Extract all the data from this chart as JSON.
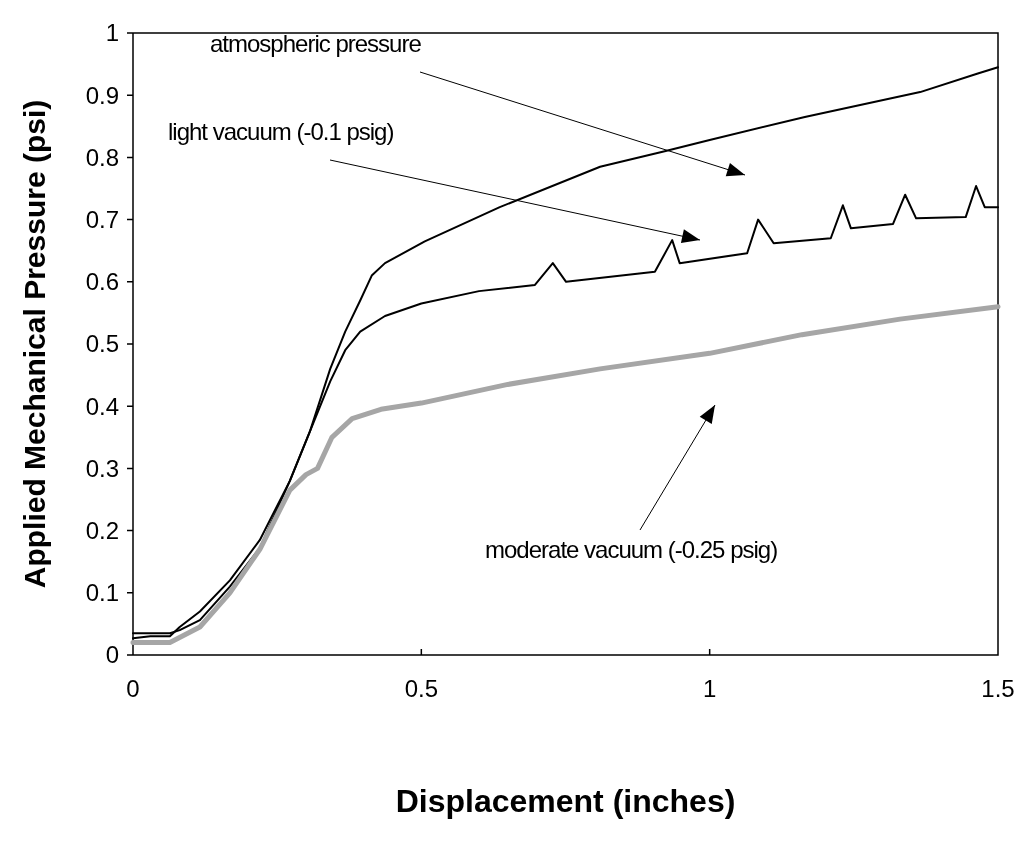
{
  "chart_data": {
    "type": "line",
    "xlabel": "Displacement (inches)",
    "ylabel": "Applied Mechanical Pressure (psi)",
    "xlim": [
      0,
      1.5
    ],
    "xticks": [
      0,
      0.5,
      1,
      1.5
    ],
    "ylim": [
      0,
      1
    ],
    "yticks": [
      0,
      0.1,
      0.2,
      0.3,
      0.4,
      0.5,
      0.6,
      0.7,
      0.8,
      0.9,
      1
    ],
    "grid": false,
    "marker": "none",
    "series": [
      {
        "color": "#000000",
        "x": [
          0,
          0.03,
          0.064,
          0.081,
          0.116,
          0.168,
          0.22,
          0.272,
          0.307,
          0.342,
          0.368,
          0.394,
          0.414,
          0.437,
          0.506,
          0.636,
          0.81,
          0.922,
          1.0,
          1.165,
          1.365,
          1.465,
          1.5
        ],
        "values": [
          0.027,
          0.03,
          0.03,
          0.045,
          0.07,
          0.12,
          0.185,
          0.28,
          0.36,
          0.46,
          0.52,
          0.57,
          0.61,
          0.63,
          0.665,
          0.72,
          0.785,
          0.81,
          0.828,
          0.865,
          0.905,
          0.935,
          0.945
        ]
      },
      {
        "color": "#000000",
        "x": [
          0,
          0.064,
          0.081,
          0.116,
          0.168,
          0.22,
          0.272,
          0.307,
          0.342,
          0.368,
          0.394,
          0.437,
          0.5,
          0.6,
          0.697,
          0.728,
          0.751,
          0.905,
          0.935,
          0.948,
          1.065,
          1.084,
          1.111,
          1.21,
          1.231,
          1.245,
          1.318,
          1.339,
          1.358,
          1.444,
          1.462,
          1.477,
          1.5
        ],
        "values": [
          0.035,
          0.035,
          0.04,
          0.056,
          0.11,
          0.172,
          0.28,
          0.36,
          0.44,
          0.49,
          0.52,
          0.545,
          0.565,
          0.585,
          0.595,
          0.63,
          0.6,
          0.616,
          0.667,
          0.63,
          0.646,
          0.7,
          0.662,
          0.67,
          0.723,
          0.686,
          0.693,
          0.74,
          0.702,
          0.704,
          0.754,
          0.72,
          0.72
        ]
      },
      {
        "color": "#a6a6a6",
        "x": [
          0,
          0.064,
          0.116,
          0.168,
          0.22,
          0.272,
          0.3,
          0.32,
          0.345,
          0.38,
          0.43,
          0.5,
          0.65,
          0.81,
          1.0,
          1.16,
          1.33,
          1.5
        ],
        "values": [
          0.02,
          0.02,
          0.045,
          0.1,
          0.17,
          0.265,
          0.29,
          0.3,
          0.35,
          0.38,
          0.395,
          0.405,
          0.435,
          0.46,
          0.485,
          0.515,
          0.54,
          0.56
        ]
      }
    ],
    "annotations": [
      "atmospheric pressure",
      "light vacuum  (-0.1 psig)",
      "moderate vacuum (-0.25 psig)"
    ]
  }
}
